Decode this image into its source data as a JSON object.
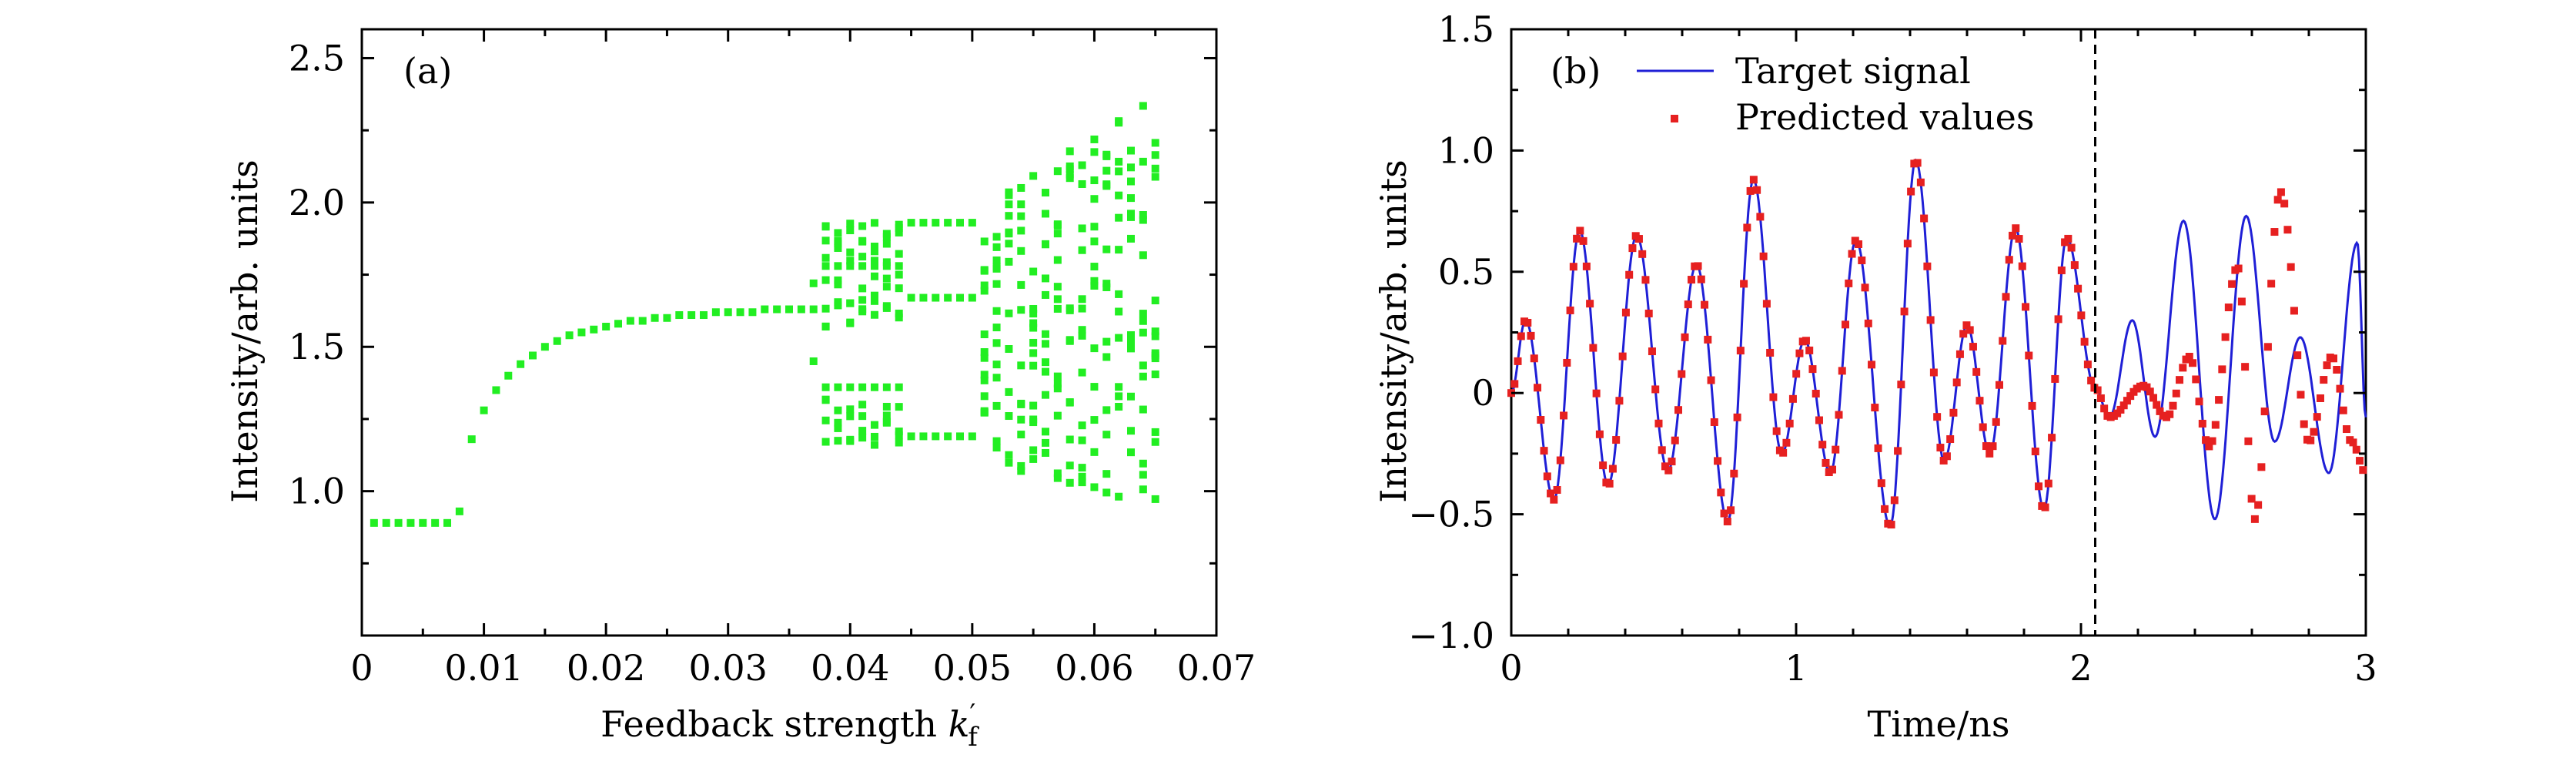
{
  "chart_data": [
    {
      "type": "scatter",
      "panel_label": "(a)",
      "xlabel": "Feedback strength ",
      "xlabel_symbol": "k",
      "xlabel_sub": "f",
      "xlabel_prime": "′",
      "ylabel": "Intensity/arb. units",
      "xlim": [
        0,
        0.07
      ],
      "ylim": [
        0.5,
        2.6
      ],
      "xticks": [
        0,
        0.01,
        0.02,
        0.03,
        0.04,
        0.05,
        0.06,
        0.07
      ],
      "xtick_labels": [
        "0",
        "0.01",
        "0.02",
        "0.03",
        "0.04",
        "0.05",
        "0.06",
        "0.07"
      ],
      "yticks": [
        1.0,
        1.5,
        2.0,
        2.5
      ],
      "ytick_labels": [
        "1.0",
        "1.5",
        "2.0",
        "2.5"
      ],
      "color": "#22ee22",
      "bifurcation": {
        "k_steps": [
          0.001,
          0.002,
          0.003,
          0.004,
          0.005,
          0.006,
          0.007,
          0.008,
          0.009,
          0.01,
          0.011,
          0.012,
          0.013,
          0.014,
          0.015,
          0.016,
          0.017,
          0.018,
          0.019,
          0.02,
          0.021,
          0.022,
          0.023,
          0.024,
          0.025,
          0.026,
          0.027,
          0.028,
          0.029,
          0.03,
          0.031,
          0.032,
          0.033,
          0.034,
          0.035,
          0.036,
          0.037,
          0.038,
          0.039,
          0.04,
          0.041,
          0.042,
          0.043,
          0.044,
          0.045,
          0.046,
          0.047,
          0.048,
          0.049,
          0.05,
          0.051,
          0.052,
          0.053,
          0.054,
          0.055,
          0.056,
          0.057,
          0.058,
          0.059,
          0.06,
          0.061,
          0.062,
          0.063,
          0.064,
          0.065
        ],
        "fixed_point": [
          0.89,
          0.89,
          0.89,
          0.89,
          0.89,
          0.89,
          0.89,
          0.93,
          1.18,
          1.28,
          1.35,
          1.4,
          1.44,
          1.47,
          1.5,
          1.52,
          1.54,
          1.55,
          1.56,
          1.57,
          1.58,
          1.59,
          1.59,
          1.6,
          1.6,
          1.61,
          1.61,
          1.61,
          1.62,
          1.62,
          1.62,
          1.62,
          1.63,
          1.63,
          1.63,
          1.63
        ]
      }
    },
    {
      "type": "line",
      "panel_label": "(b)",
      "xlabel": "Time/ns",
      "ylabel": "Intensity/arb. units",
      "xlim": [
        0,
        3
      ],
      "ylim": [
        -1.0,
        1.5
      ],
      "xticks": [
        0,
        1,
        2,
        3
      ],
      "xtick_labels": [
        "0",
        "1",
        "2",
        "3"
      ],
      "yticks": [
        -1.0,
        -0.5,
        0,
        0.5,
        1.0,
        1.5
      ],
      "ytick_labels": [
        "−1.0",
        "−0.5",
        "0",
        "0.5",
        "1.0",
        "1.5"
      ],
      "divider_x": 2.05,
      "legend": {
        "position": "top-left",
        "entries": [
          "Target signal",
          "Predicted values"
        ]
      },
      "series": [
        {
          "name": "Target signal",
          "style": "line",
          "color": "#1f1fd6",
          "peaks": [
            [
              0.0,
              0.0
            ],
            [
              0.05,
              0.3
            ],
            [
              0.15,
              -0.44
            ],
            [
              0.24,
              0.67
            ],
            [
              0.34,
              -0.38
            ],
            [
              0.44,
              0.65
            ],
            [
              0.55,
              -0.32
            ],
            [
              0.65,
              0.53
            ],
            [
              0.76,
              -0.53
            ],
            [
              0.85,
              0.88
            ],
            [
              0.95,
              -0.25
            ],
            [
              1.03,
              0.22
            ],
            [
              1.12,
              -0.33
            ],
            [
              1.21,
              0.63
            ],
            [
              1.33,
              -0.55
            ],
            [
              1.42,
              0.96
            ],
            [
              1.52,
              -0.28
            ],
            [
              1.6,
              0.28
            ],
            [
              1.68,
              -0.25
            ],
            [
              1.77,
              0.68
            ],
            [
              1.87,
              -0.48
            ],
            [
              1.95,
              0.64
            ],
            [
              2.05,
              0.02
            ],
            [
              2.1,
              -0.1
            ],
            [
              2.18,
              0.3
            ],
            [
              2.26,
              -0.18
            ],
            [
              2.36,
              0.71
            ],
            [
              2.47,
              -0.52
            ],
            [
              2.58,
              0.73
            ],
            [
              2.68,
              -0.2
            ],
            [
              2.77,
              0.23
            ],
            [
              2.87,
              -0.33
            ],
            [
              2.97,
              0.62
            ],
            [
              3.0,
              -0.1
            ]
          ]
        },
        {
          "name": "Predicted values",
          "style": "markers",
          "color": "#e62020",
          "extra_peaks": [
            [
              2.22,
              0.03
            ],
            [
              2.3,
              -0.1
            ],
            [
              2.38,
              0.15
            ],
            [
              2.45,
              -0.22
            ],
            [
              2.55,
              0.52
            ],
            [
              2.61,
              -0.52
            ],
            [
              2.7,
              0.83
            ],
            [
              2.8,
              -0.2
            ],
            [
              2.88,
              0.15
            ],
            [
              2.95,
              -0.2
            ],
            [
              3.0,
              -0.33
            ]
          ]
        }
      ]
    }
  ]
}
